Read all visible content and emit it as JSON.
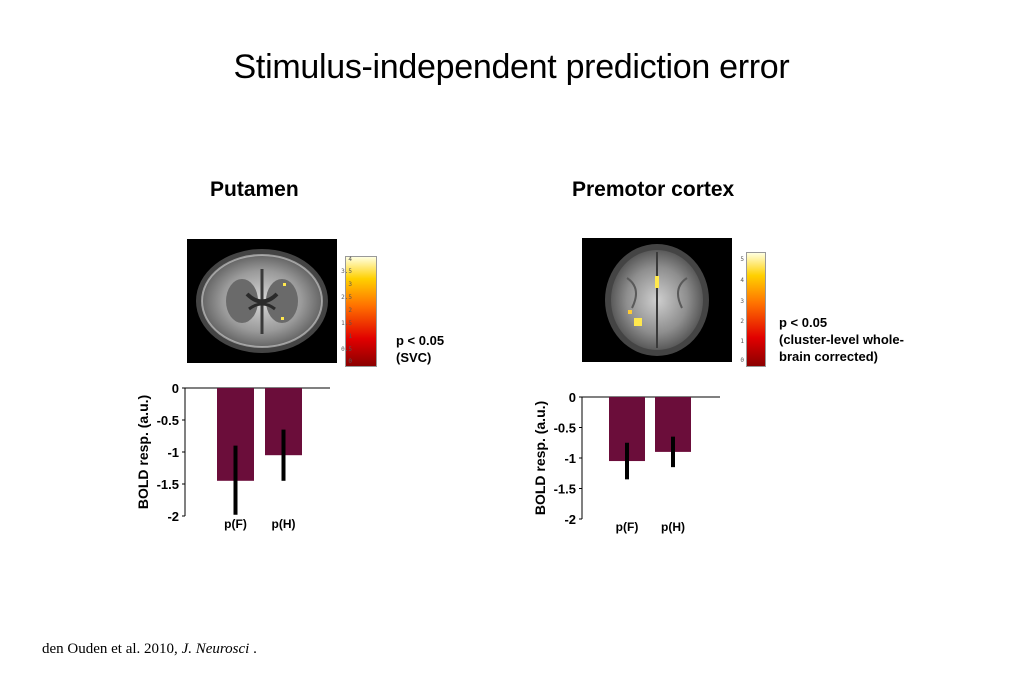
{
  "slide": {
    "title": "Stimulus-independent prediction error",
    "citation_main": "den Ouden et al. 2010, ",
    "citation_journal": "J. Neurosci",
    "citation_end": " ."
  },
  "panels": [
    {
      "title": "Putamen",
      "p_line1": "p < 0.05",
      "p_line2": "(SVC)",
      "p_line3": "",
      "colorbar_ticks": [
        "4",
        "3.5",
        "3",
        "2.5",
        "2",
        "1.5",
        "1",
        "0.5",
        "0"
      ]
    },
    {
      "title": "Premotor cortex",
      "p_line1": "p < 0.05",
      "p_line2": "(cluster-level whole-",
      "p_line3": "brain corrected)",
      "colorbar_ticks": [
        "5",
        "4",
        "3",
        "2",
        "1",
        "0"
      ]
    }
  ],
  "colors": {
    "bar": "#6b0d3a",
    "errorbar": "#000000"
  },
  "chart_data": [
    {
      "type": "bar",
      "categories": [
        "p(F)",
        "p(H)"
      ],
      "values": [
        -1.45,
        -1.05
      ],
      "error_low": [
        -1.98,
        -1.45
      ],
      "error_high": [
        -0.9,
        -0.65
      ],
      "ylabel": "BOLD resp. (a.u.)",
      "yticks": [
        "0",
        "-0.5",
        "-1",
        "-1.5",
        "-2"
      ],
      "ylim": [
        -2,
        0
      ],
      "grid": false
    },
    {
      "type": "bar",
      "categories": [
        "p(F)",
        "p(H)"
      ],
      "values": [
        -1.05,
        -0.9
      ],
      "error_low": [
        -1.35,
        -1.15
      ],
      "error_high": [
        -0.75,
        -0.65
      ],
      "ylabel": "BOLD resp. (a.u.)",
      "yticks": [
        "0",
        "-0.5",
        "-1",
        "-1.5",
        "-2"
      ],
      "ylim": [
        -2,
        0
      ],
      "grid": false
    }
  ]
}
